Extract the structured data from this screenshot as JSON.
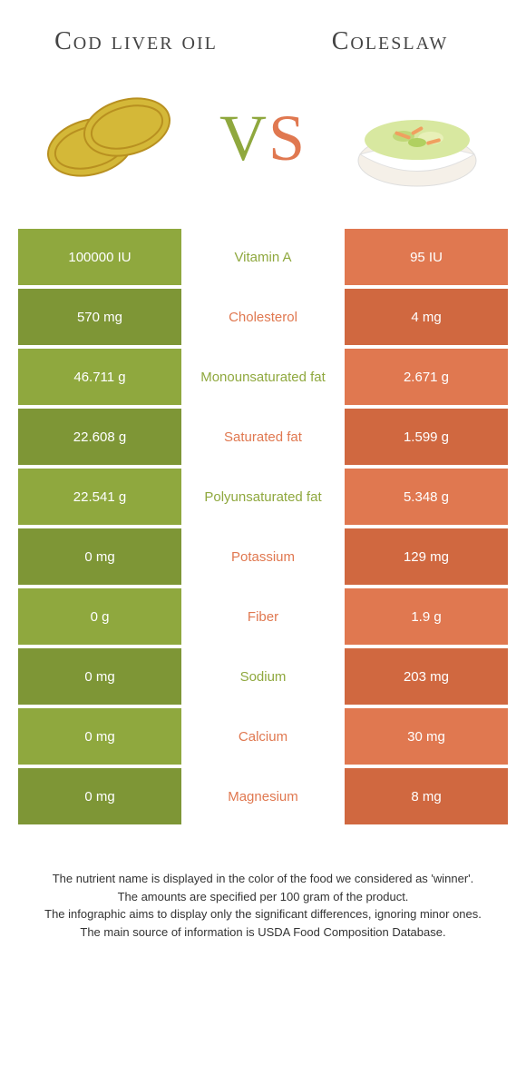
{
  "colors": {
    "green": "#8fa83e",
    "orange": "#e07850",
    "green_dark": "#7e9636",
    "orange_dark": "#d06840"
  },
  "header": {
    "left": "Cod liver oil",
    "right": "Coleslaw"
  },
  "vs": {
    "v": "V",
    "s": "S"
  },
  "rows": [
    {
      "left": "100000 IU",
      "mid": "Vitamin A",
      "right": "95 IU",
      "winner": "left"
    },
    {
      "left": "570 mg",
      "mid": "Cholesterol",
      "right": "4 mg",
      "winner": "right"
    },
    {
      "left": "46.711 g",
      "mid": "Monounsaturated fat",
      "right": "2.671 g",
      "winner": "left"
    },
    {
      "left": "22.608 g",
      "mid": "Saturated fat",
      "right": "1.599 g",
      "winner": "right"
    },
    {
      "left": "22.541 g",
      "mid": "Polyunsaturated fat",
      "right": "5.348 g",
      "winner": "left"
    },
    {
      "left": "0 mg",
      "mid": "Potassium",
      "right": "129 mg",
      "winner": "right"
    },
    {
      "left": "0 g",
      "mid": "Fiber",
      "right": "1.9 g",
      "winner": "right"
    },
    {
      "left": "0 mg",
      "mid": "Sodium",
      "right": "203 mg",
      "winner": "left"
    },
    {
      "left": "0 mg",
      "mid": "Calcium",
      "right": "30 mg",
      "winner": "right"
    },
    {
      "left": "0 mg",
      "mid": "Magnesium",
      "right": "8 mg",
      "winner": "right"
    }
  ],
  "footer": {
    "l1": "The nutrient name is displayed in the color of the food we considered as 'winner'.",
    "l2": "The amounts are specified per 100 gram of the product.",
    "l3": "The infographic aims to display only the significant differences, ignoring minor ones.",
    "l4": "The main source of information is USDA Food Composition Database."
  }
}
